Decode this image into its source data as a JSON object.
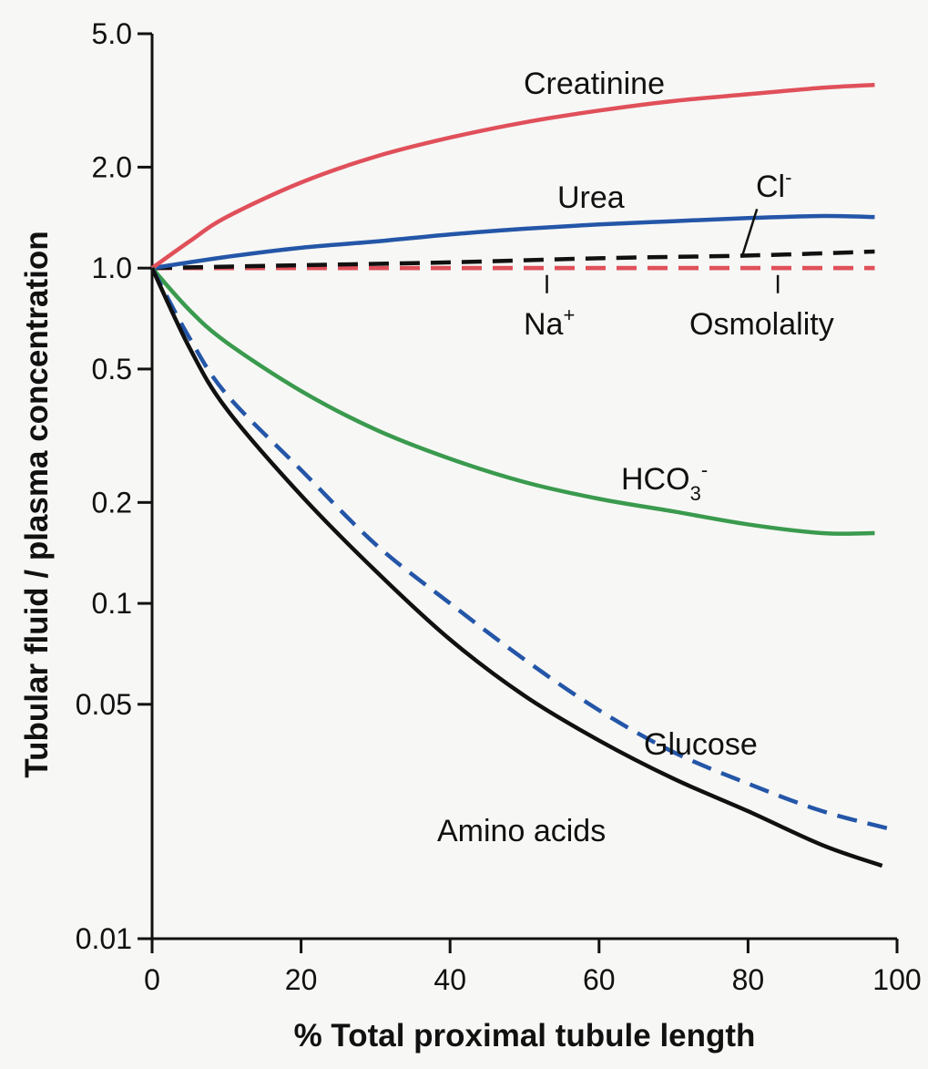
{
  "chart_data": {
    "type": "line",
    "title": "",
    "xlabel": "% Total proximal tubule length",
    "ylabel": "Tubular fluid / plasma concentration",
    "xlim": [
      0,
      100
    ],
    "ylim": [
      0.01,
      5.0
    ],
    "x_scale": "linear",
    "y_scale": "log",
    "grid": false,
    "legend": "none (series labelled inline)",
    "x_ticks": [
      "0",
      "20",
      "40",
      "60",
      "80",
      "100"
    ],
    "y_ticks": [
      "0.01",
      "0.05",
      "0.1",
      "0.2",
      "0.5",
      "1.0",
      "2.0",
      "5.0"
    ],
    "series": [
      {
        "name": "Creatinine",
        "label_text": "Creatinine",
        "color": "#e0505a",
        "dash": "solid",
        "points": [
          [
            0,
            1.0
          ],
          [
            5,
            1.2
          ],
          [
            10,
            1.42
          ],
          [
            20,
            1.8
          ],
          [
            30,
            2.15
          ],
          [
            40,
            2.45
          ],
          [
            50,
            2.72
          ],
          [
            60,
            2.95
          ],
          [
            70,
            3.15
          ],
          [
            80,
            3.3
          ],
          [
            90,
            3.45
          ],
          [
            97,
            3.52
          ]
        ]
      },
      {
        "name": "Urea",
        "label_text": "Urea",
        "color": "#2456a8",
        "dash": "solid",
        "points": [
          [
            0,
            1.0
          ],
          [
            10,
            1.08
          ],
          [
            20,
            1.15
          ],
          [
            30,
            1.2
          ],
          [
            40,
            1.26
          ],
          [
            50,
            1.31
          ],
          [
            60,
            1.35
          ],
          [
            70,
            1.38
          ],
          [
            80,
            1.41
          ],
          [
            90,
            1.43
          ],
          [
            97,
            1.42
          ]
        ]
      },
      {
        "name": "Cl-",
        "label_main": "Cl",
        "label_sup": "-",
        "color": "#111111",
        "dash": "dashed",
        "points": [
          [
            0,
            1.0
          ],
          [
            20,
            1.02
          ],
          [
            40,
            1.04
          ],
          [
            60,
            1.07
          ],
          [
            80,
            1.09
          ],
          [
            97,
            1.12
          ]
        ]
      },
      {
        "name": "Na+",
        "label_main": "Na",
        "label_sup": "+",
        "color": "#e0505a",
        "dash": "dashed",
        "points": [
          [
            0,
            1.0
          ],
          [
            97,
            1.0
          ]
        ]
      },
      {
        "name": "Osmolality",
        "label_text": "Osmolality",
        "color": "#e0505a",
        "dash": "dashed",
        "points": [
          [
            0,
            1.0
          ],
          [
            97,
            1.0
          ]
        ]
      },
      {
        "name": "HCO3-",
        "label_main": "HCO",
        "label_sub": "3",
        "label_sup": "-",
        "color": "#3a9a4e",
        "dash": "solid",
        "points": [
          [
            0,
            1.0
          ],
          [
            5,
            0.75
          ],
          [
            10,
            0.6
          ],
          [
            20,
            0.43
          ],
          [
            30,
            0.33
          ],
          [
            40,
            0.27
          ],
          [
            50,
            0.23
          ],
          [
            60,
            0.205
          ],
          [
            70,
            0.188
          ],
          [
            80,
            0.172
          ],
          [
            90,
            0.162
          ],
          [
            97,
            0.162
          ]
        ]
      },
      {
        "name": "Glucose",
        "label_text": "Glucose",
        "color": "#2456a8",
        "dash": "dashed",
        "points": [
          [
            0,
            1.0
          ],
          [
            5,
            0.62
          ],
          [
            10,
            0.42
          ],
          [
            20,
            0.25
          ],
          [
            30,
            0.15
          ],
          [
            40,
            0.1
          ],
          [
            50,
            0.068
          ],
          [
            60,
            0.048
          ],
          [
            70,
            0.036
          ],
          [
            80,
            0.029
          ],
          [
            90,
            0.024
          ],
          [
            100,
            0.021
          ]
        ]
      },
      {
        "name": "Amino acids",
        "label_text": "Amino acids",
        "color": "#111111",
        "dash": "solid",
        "points": [
          [
            0,
            1.0
          ],
          [
            5,
            0.58
          ],
          [
            10,
            0.38
          ],
          [
            20,
            0.21
          ],
          [
            30,
            0.125
          ],
          [
            40,
            0.078
          ],
          [
            50,
            0.053
          ],
          [
            60,
            0.039
          ],
          [
            70,
            0.03
          ],
          [
            80,
            0.024
          ],
          [
            90,
            0.019
          ],
          [
            98,
            0.0165
          ]
        ]
      }
    ]
  }
}
